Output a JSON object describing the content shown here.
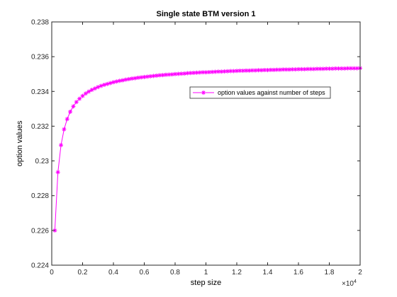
{
  "chart_data": {
    "type": "line",
    "title": "Single state BTM version 1",
    "xlabel": "step size",
    "ylabel": "option values",
    "x_multiplier_label": "×10",
    "x_multiplier_exponent": "4",
    "xlim": [
      0,
      20000
    ],
    "ylim": [
      0.224,
      0.238
    ],
    "xticks": [
      0,
      2000,
      4000,
      6000,
      8000,
      10000,
      12000,
      14000,
      16000,
      18000,
      20000
    ],
    "xtick_labels": [
      "0",
      "0.2",
      "0.4",
      "0.6",
      "0.8",
      "1",
      "1.2",
      "1.4",
      "1.6",
      "1.8",
      "2"
    ],
    "yticks": [
      0.224,
      0.226,
      0.228,
      0.23,
      0.232,
      0.234,
      0.236,
      0.238
    ],
    "ytick_labels": [
      "0.224",
      "0.226",
      "0.228",
      "0.23",
      "0.232",
      "0.234",
      "0.236",
      "0.238"
    ],
    "grid": false,
    "legend_position": "upper-right",
    "series": [
      {
        "name": "option values against number of steps",
        "color": "#ff00ff",
        "marker": "asterisk",
        "x_start": 200,
        "x_step": 200,
        "values": [
          0.226,
          0.22935,
          0.23091,
          0.23182,
          0.23241,
          0.23283,
          0.23314,
          0.23339,
          0.23358,
          0.23374,
          0.23388,
          0.23399,
          0.23409,
          0.23417,
          0.23425,
          0.23432,
          0.23438,
          0.23443,
          0.23448,
          0.23453,
          0.23457,
          0.23461,
          0.23464,
          0.23468,
          0.23471,
          0.23474,
          0.23476,
          0.23479,
          0.23481,
          0.23483,
          0.23485,
          0.23487,
          0.23489,
          0.23491,
          0.23493,
          0.23494,
          0.23496,
          0.23497,
          0.23498,
          0.235,
          0.23501,
          0.23502,
          0.23503,
          0.23505,
          0.23506,
          0.23507,
          0.23508,
          0.23509,
          0.2351,
          0.2351,
          0.23511,
          0.23512,
          0.23513,
          0.23514,
          0.23514,
          0.23515,
          0.23516,
          0.23517,
          0.23517,
          0.23518,
          0.23519,
          0.23519,
          0.2352,
          0.2352,
          0.23521,
          0.23521,
          0.23522,
          0.23522,
          0.23523,
          0.23523,
          0.23524,
          0.23524,
          0.23525,
          0.23525,
          0.23526,
          0.23526,
          0.23526,
          0.23527,
          0.23527,
          0.23528,
          0.23528,
          0.23528,
          0.23529,
          0.23529,
          0.23529,
          0.2353,
          0.2353,
          0.2353,
          0.23531,
          0.23531,
          0.23531,
          0.23532,
          0.23532,
          0.23532,
          0.23532,
          0.23533,
          0.23533,
          0.23533,
          0.23533,
          0.23534
        ]
      }
    ]
  }
}
